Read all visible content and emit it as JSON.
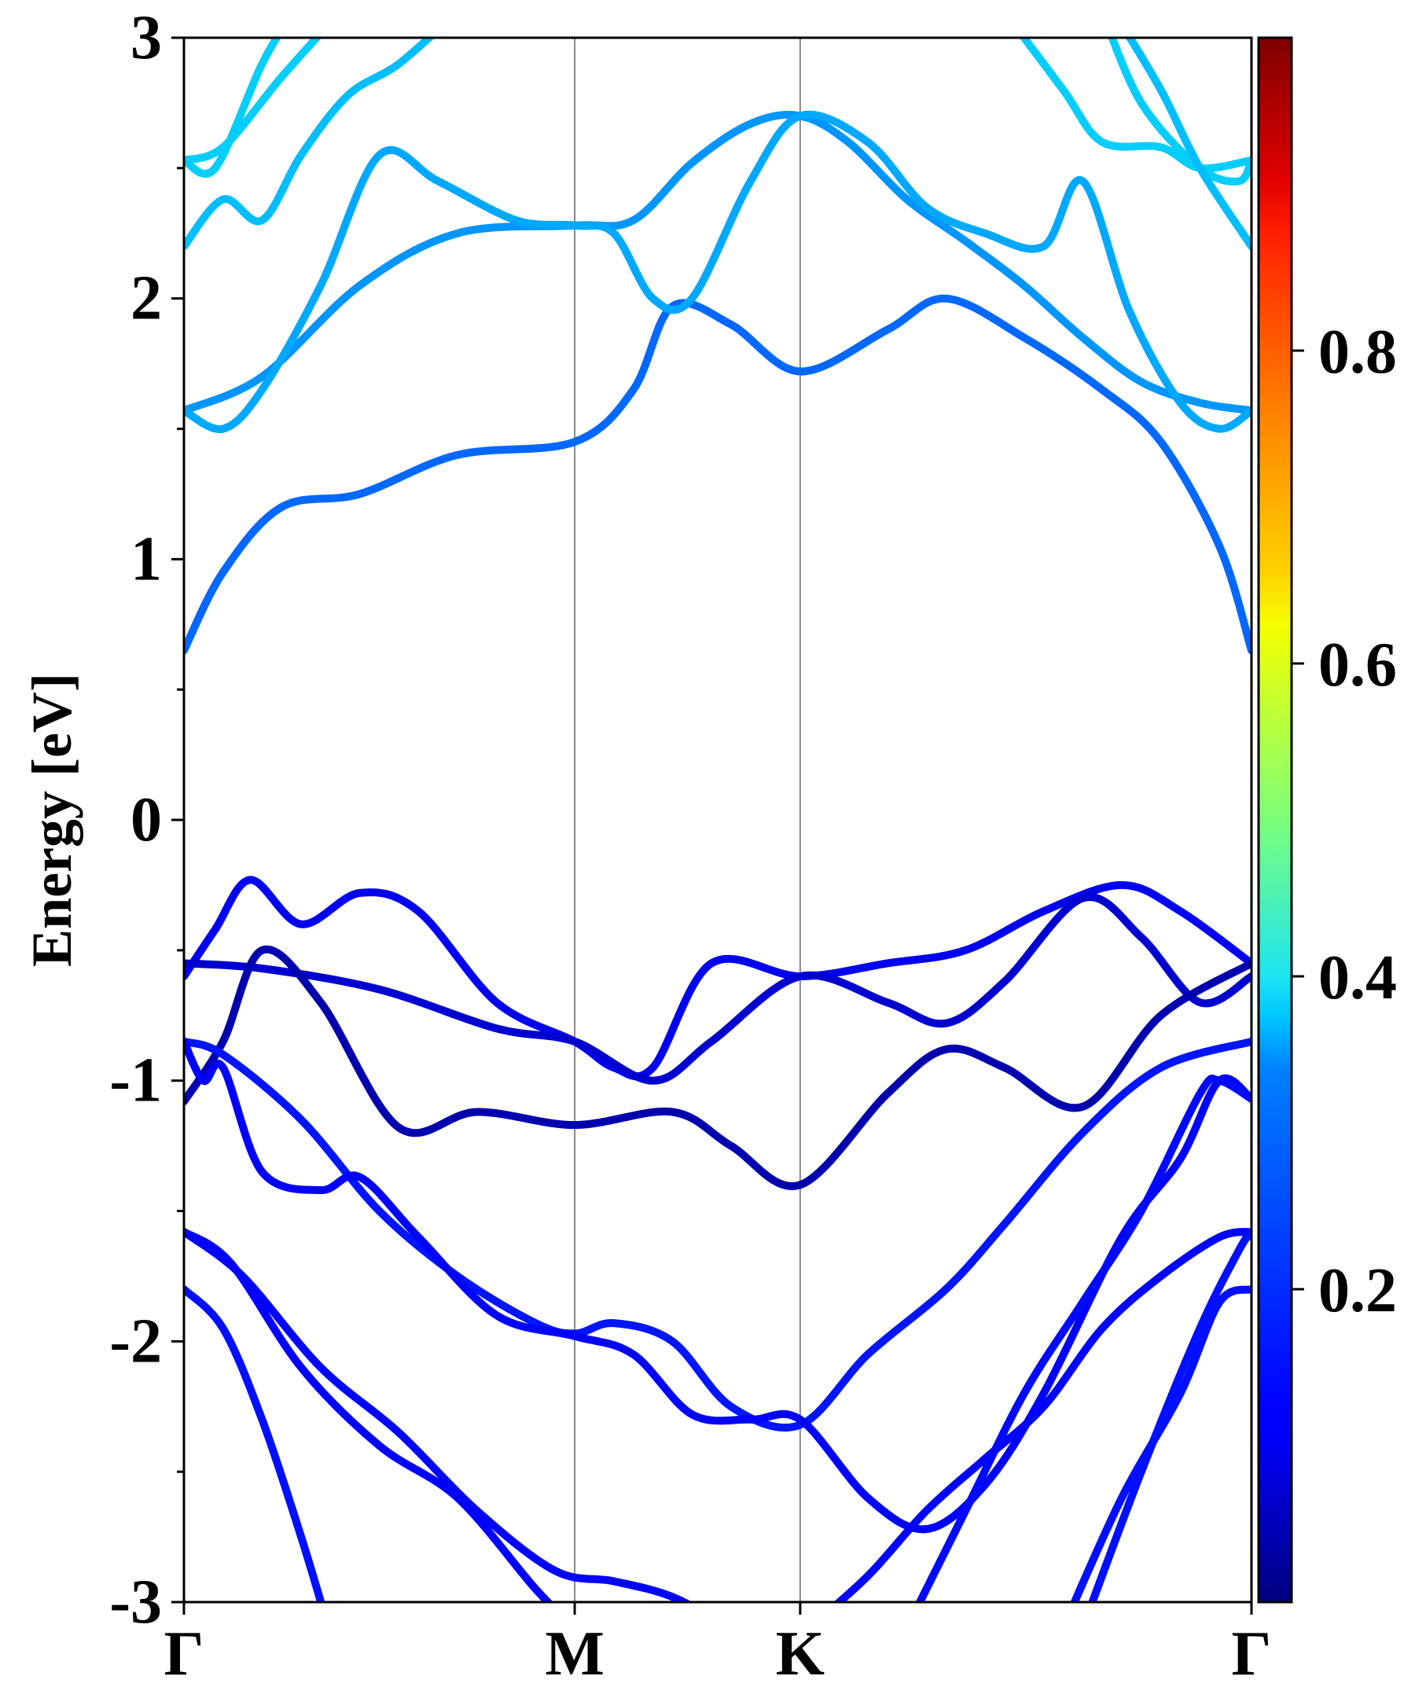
{
  "chart_data": {
    "type": "line",
    "title": "",
    "ylabel": "Energy [eV]",
    "xlabel": "",
    "ylim": [
      -3,
      3
    ],
    "y_ticks": [
      "3",
      "2",
      "1",
      "0",
      "-1",
      "-2",
      "-3"
    ],
    "k_points": [
      "Γ",
      "M",
      "K",
      "Γ"
    ],
    "k_positions": [
      0,
      1,
      1.577,
      2.732
    ],
    "grid": false,
    "colorbar": {
      "colormap": "jet",
      "range": [
        0,
        1
      ],
      "tick_labels": [
        "0.8",
        "0.6",
        "0.4",
        "0.2"
      ],
      "tick_values": [
        0.8,
        0.6,
        0.4,
        0.2
      ]
    },
    "series": [
      {
        "weight": 0.3,
        "points": [
          [
            0,
            0.65
          ],
          [
            0.1,
            0.95
          ],
          [
            0.25,
            1.2
          ],
          [
            0.45,
            1.25
          ],
          [
            0.7,
            1.4
          ],
          [
            1.0,
            1.45
          ],
          [
            1.15,
            1.65
          ],
          [
            1.25,
            1.97
          ],
          [
            1.4,
            1.9
          ],
          [
            1.577,
            1.72
          ],
          [
            1.8,
            1.88
          ],
          [
            1.95,
            2.0
          ],
          [
            2.15,
            1.85
          ],
          [
            2.35,
            1.65
          ],
          [
            2.5,
            1.45
          ],
          [
            2.65,
            1.05
          ],
          [
            2.732,
            0.65
          ]
        ]
      },
      {
        "weight": 0.35,
        "points": [
          [
            0,
            1.57
          ],
          [
            0.2,
            1.7
          ],
          [
            0.45,
            2.05
          ],
          [
            0.7,
            2.25
          ],
          [
            1.0,
            2.28
          ],
          [
            1.15,
            2.3
          ],
          [
            1.3,
            2.52
          ],
          [
            1.45,
            2.67
          ],
          [
            1.577,
            2.7
          ],
          [
            1.7,
            2.6
          ],
          [
            1.85,
            2.38
          ],
          [
            2.0,
            2.22
          ],
          [
            2.15,
            2.05
          ],
          [
            2.3,
            1.85
          ],
          [
            2.45,
            1.68
          ],
          [
            2.6,
            1.6
          ],
          [
            2.732,
            1.57
          ]
        ]
      },
      {
        "weight": 0.36,
        "points": [
          [
            0,
            1.57
          ],
          [
            0.1,
            1.5
          ],
          [
            0.2,
            1.65
          ],
          [
            0.35,
            2.05
          ],
          [
            0.5,
            2.55
          ],
          [
            0.65,
            2.45
          ],
          [
            0.85,
            2.3
          ],
          [
            1.0,
            2.28
          ],
          [
            1.1,
            2.25
          ],
          [
            1.2,
            2.0
          ],
          [
            1.3,
            2.0
          ],
          [
            1.45,
            2.45
          ],
          [
            1.577,
            2.7
          ],
          [
            1.75,
            2.6
          ],
          [
            1.9,
            2.35
          ],
          [
            2.05,
            2.25
          ],
          [
            2.2,
            2.2
          ],
          [
            2.3,
            2.45
          ],
          [
            2.42,
            1.95
          ],
          [
            2.55,
            1.6
          ],
          [
            2.65,
            1.5
          ],
          [
            2.732,
            1.57
          ]
        ]
      },
      {
        "weight": 0.37,
        "points": [
          [
            0,
            2.2
          ],
          [
            0.1,
            2.38
          ],
          [
            0.2,
            2.3
          ],
          [
            0.3,
            2.55
          ],
          [
            0.42,
            2.78
          ],
          [
            0.55,
            2.9
          ],
          [
            0.7,
            3.1
          ]
        ]
      },
      {
        "weight": 0.38,
        "points": [
          [
            0,
            2.53
          ],
          [
            0.1,
            2.58
          ],
          [
            0.25,
            2.85
          ],
          [
            0.4,
            3.1
          ]
        ]
      },
      {
        "weight": 0.38,
        "points": [
          [
            0,
            2.53
          ],
          [
            0.08,
            2.5
          ],
          [
            0.2,
            2.9
          ],
          [
            0.28,
            3.1
          ]
        ]
      },
      {
        "weight": 0.38,
        "points": [
          [
            2.1,
            3.1
          ],
          [
            2.25,
            2.8
          ],
          [
            2.35,
            2.6
          ],
          [
            2.5,
            2.58
          ],
          [
            2.6,
            2.5
          ],
          [
            2.732,
            2.53
          ]
        ]
      },
      {
        "weight": 0.38,
        "points": [
          [
            2.35,
            3.1
          ],
          [
            2.45,
            2.75
          ],
          [
            2.6,
            2.5
          ],
          [
            2.7,
            2.45
          ],
          [
            2.732,
            2.53
          ]
        ]
      },
      {
        "weight": 0.37,
        "points": [
          [
            2.38,
            3.1
          ],
          [
            2.5,
            2.8
          ],
          [
            2.6,
            2.5
          ],
          [
            2.732,
            2.2
          ]
        ]
      },
      {
        "weight": 0.1,
        "points": [
          [
            0,
            -0.6
          ],
          [
            0.08,
            -0.42
          ],
          [
            0.17,
            -0.23
          ],
          [
            0.3,
            -0.4
          ],
          [
            0.45,
            -0.28
          ],
          [
            0.6,
            -0.35
          ],
          [
            0.8,
            -0.7
          ],
          [
            1.0,
            -0.85
          ],
          [
            1.1,
            -0.95
          ],
          [
            1.2,
            -0.95
          ],
          [
            1.35,
            -0.55
          ],
          [
            1.577,
            -0.6
          ],
          [
            1.8,
            -0.55
          ],
          [
            2.0,
            -0.5
          ],
          [
            2.2,
            -0.35
          ],
          [
            2.4,
            -0.25
          ],
          [
            2.55,
            -0.35
          ],
          [
            2.732,
            -0.55
          ]
        ]
      },
      {
        "weight": 0.07,
        "points": [
          [
            0,
            -0.55
          ],
          [
            0.2,
            -0.57
          ],
          [
            0.5,
            -0.65
          ],
          [
            0.8,
            -0.8
          ],
          [
            1.0,
            -0.85
          ],
          [
            1.2,
            -1.0
          ],
          [
            1.35,
            -0.85
          ],
          [
            1.577,
            -0.6
          ],
          [
            1.8,
            -0.7
          ],
          [
            1.95,
            -0.78
          ],
          [
            2.1,
            -0.62
          ],
          [
            2.3,
            -0.3
          ],
          [
            2.45,
            -0.45
          ],
          [
            2.6,
            -0.7
          ],
          [
            2.732,
            -0.6
          ]
        ]
      },
      {
        "weight": 0.04,
        "points": [
          [
            0,
            -1.08
          ],
          [
            0.1,
            -0.85
          ],
          [
            0.2,
            -0.5
          ],
          [
            0.35,
            -0.7
          ],
          [
            0.55,
            -1.18
          ],
          [
            0.75,
            -1.12
          ],
          [
            1.0,
            -1.17
          ],
          [
            1.25,
            -1.12
          ],
          [
            1.4,
            -1.25
          ],
          [
            1.577,
            -1.4
          ],
          [
            1.8,
            -1.05
          ],
          [
            1.95,
            -0.88
          ],
          [
            2.1,
            -0.95
          ],
          [
            2.3,
            -1.1
          ],
          [
            2.5,
            -0.75
          ],
          [
            2.732,
            -0.55
          ]
        ]
      },
      {
        "weight": 0.16,
        "points": [
          [
            0,
            -0.85
          ],
          [
            0.1,
            -0.9
          ],
          [
            0.3,
            -1.15
          ],
          [
            0.5,
            -1.5
          ],
          [
            0.7,
            -1.75
          ],
          [
            0.9,
            -1.93
          ],
          [
            1.0,
            -1.97
          ],
          [
            1.1,
            -1.93
          ],
          [
            1.25,
            -2.0
          ],
          [
            1.4,
            -2.25
          ],
          [
            1.577,
            -2.32
          ],
          [
            1.75,
            -2.05
          ],
          [
            1.95,
            -1.8
          ],
          [
            2.1,
            -1.55
          ],
          [
            2.3,
            -1.2
          ],
          [
            2.5,
            -0.95
          ],
          [
            2.732,
            -0.85
          ]
        ]
      },
      {
        "weight": 0.12,
        "points": [
          [
            0,
            -0.85
          ],
          [
            0.05,
            -1.0
          ],
          [
            0.1,
            -0.95
          ],
          [
            0.2,
            -1.35
          ],
          [
            0.35,
            -1.42
          ],
          [
            0.45,
            -1.37
          ],
          [
            0.6,
            -1.6
          ],
          [
            0.8,
            -1.9
          ],
          [
            1.0,
            -1.98
          ],
          [
            1.15,
            -2.05
          ],
          [
            1.3,
            -2.28
          ],
          [
            1.45,
            -2.3
          ],
          [
            1.577,
            -2.3
          ],
          [
            1.75,
            -2.6
          ],
          [
            1.9,
            -2.72
          ],
          [
            2.05,
            -2.55
          ],
          [
            2.2,
            -2.2
          ],
          [
            2.4,
            -1.6
          ],
          [
            2.55,
            -1.3
          ],
          [
            2.65,
            -1.0
          ],
          [
            2.732,
            -1.07
          ]
        ]
      },
      {
        "weight": 0.13,
        "points": [
          [
            0,
            -1.58
          ],
          [
            0.15,
            -1.75
          ],
          [
            0.35,
            -2.1
          ],
          [
            0.55,
            -2.35
          ],
          [
            0.75,
            -2.65
          ],
          [
            0.95,
            -2.88
          ],
          [
            1.1,
            -2.92
          ],
          [
            1.25,
            -2.98
          ],
          [
            1.4,
            -3.1
          ]
        ]
      },
      {
        "weight": 0.12,
        "points": [
          [
            0,
            -1.58
          ],
          [
            0.12,
            -1.7
          ],
          [
            0.3,
            -2.1
          ],
          [
            0.5,
            -2.4
          ],
          [
            0.7,
            -2.6
          ],
          [
            0.9,
            -2.95
          ],
          [
            1.0,
            -3.1
          ]
        ]
      },
      {
        "weight": 0.15,
        "points": [
          [
            0,
            -1.8
          ],
          [
            0.1,
            -1.95
          ],
          [
            0.2,
            -2.3
          ],
          [
            0.3,
            -2.75
          ],
          [
            0.37,
            -3.1
          ]
        ]
      },
      {
        "weight": 0.13,
        "points": [
          [
            1.6,
            -3.1
          ],
          [
            1.75,
            -2.9
          ],
          [
            1.9,
            -2.65
          ],
          [
            2.05,
            -2.45
          ],
          [
            2.2,
            -2.25
          ],
          [
            2.35,
            -1.95
          ],
          [
            2.5,
            -1.75
          ],
          [
            2.65,
            -1.6
          ],
          [
            2.732,
            -1.58
          ]
        ]
      },
      {
        "weight": 0.14,
        "points": [
          [
            1.85,
            -3.1
          ],
          [
            2.0,
            -2.65
          ],
          [
            2.15,
            -2.2
          ],
          [
            2.3,
            -1.85
          ],
          [
            2.45,
            -1.5
          ],
          [
            2.6,
            -1.05
          ],
          [
            2.65,
            -1.0
          ],
          [
            2.732,
            -1.07
          ]
        ]
      },
      {
        "weight": 0.15,
        "points": [
          [
            2.25,
            -3.1
          ],
          [
            2.4,
            -2.6
          ],
          [
            2.55,
            -2.2
          ],
          [
            2.65,
            -1.85
          ],
          [
            2.732,
            -1.8
          ]
        ]
      },
      {
        "weight": 0.15,
        "points": [
          [
            2.3,
            -3.1
          ],
          [
            2.45,
            -2.5
          ],
          [
            2.6,
            -1.95
          ],
          [
            2.7,
            -1.65
          ],
          [
            2.732,
            -1.58
          ]
        ]
      }
    ]
  }
}
